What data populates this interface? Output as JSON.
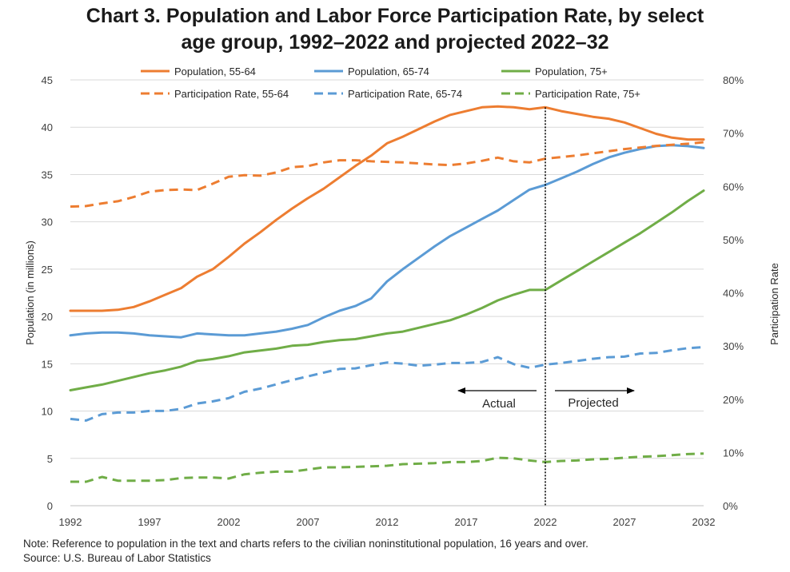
{
  "title_lines": [
    "Chart 3. Population and Labor Force Participation Rate, by select",
    "age group, 1992–2022 and projected 2022–32"
  ],
  "notes": {
    "note": "Note: Reference to population in the text and charts refers to the civilian noninstitutional population, 16 years and over.",
    "source": "Source: U.S. Bureau of Labor Statistics"
  },
  "chart_data": {
    "type": "line",
    "title": "Chart 3. Population and Labor Force Participation Rate, by select age group, 1992–2022 and projected 2022–32",
    "ylabel": "Population (in millions)",
    "y2label": "Participation Rate",
    "ylim": [
      0,
      45
    ],
    "y2lim": [
      0,
      0.8
    ],
    "xlim": [
      1992,
      2032
    ],
    "x_ticks": [
      "1992",
      "1997",
      "2002",
      "2007",
      "2012",
      "2017",
      "2022",
      "2027",
      "2032"
    ],
    "y_ticks": [
      "0",
      "5",
      "10",
      "15",
      "20",
      "25",
      "30",
      "35",
      "40",
      "45"
    ],
    "y2_ticks": [
      "0%",
      "10%",
      "20%",
      "30%",
      "40%",
      "50%",
      "60%",
      "70%",
      "80%"
    ],
    "grid": true,
    "legend_position": "top",
    "divider_year": 2022,
    "annotations": {
      "actual": "Actual",
      "projected": "Projected"
    },
    "x": [
      1992,
      1993,
      1994,
      1995,
      1996,
      1997,
      1998,
      1999,
      2000,
      2001,
      2002,
      2003,
      2004,
      2005,
      2006,
      2007,
      2008,
      2009,
      2010,
      2011,
      2012,
      2013,
      2014,
      2015,
      2016,
      2017,
      2018,
      2019,
      2020,
      2021,
      2022,
      2023,
      2024,
      2025,
      2026,
      2027,
      2028,
      2029,
      2030,
      2031,
      2032
    ],
    "series": [
      {
        "name": "Population, 55-64",
        "axis": "left",
        "style": "solid",
        "color": "#ED7D31",
        "values": [
          20.6,
          20.6,
          20.6,
          20.7,
          21.0,
          21.6,
          22.3,
          23.0,
          24.2,
          25.0,
          26.3,
          27.7,
          28.9,
          30.2,
          31.4,
          32.5,
          33.5,
          34.7,
          35.9,
          37.0,
          38.3,
          39.0,
          39.8,
          40.6,
          41.3,
          41.7,
          42.1,
          42.2,
          42.1,
          41.9,
          42.1,
          41.7,
          41.4,
          41.1,
          40.9,
          40.5,
          39.9,
          39.3,
          38.9,
          38.7,
          38.7
        ]
      },
      {
        "name": "Population, 65-74",
        "axis": "left",
        "style": "solid",
        "color": "#5B9BD5",
        "values": [
          18.0,
          18.2,
          18.3,
          18.3,
          18.2,
          18.0,
          17.9,
          17.8,
          18.2,
          18.1,
          18.0,
          18.0,
          18.2,
          18.4,
          18.7,
          19.1,
          19.9,
          20.6,
          21.1,
          21.9,
          23.7,
          25.0,
          26.2,
          27.4,
          28.5,
          29.4,
          30.3,
          31.2,
          32.3,
          33.4,
          33.9,
          34.6,
          35.3,
          36.1,
          36.8,
          37.3,
          37.7,
          38.0,
          38.1,
          38.0,
          37.8
        ]
      },
      {
        "name": "Population, 75+",
        "axis": "left",
        "style": "solid",
        "color": "#70AD47",
        "values": [
          12.2,
          12.5,
          12.8,
          13.2,
          13.6,
          14.0,
          14.3,
          14.7,
          15.3,
          15.5,
          15.8,
          16.2,
          16.4,
          16.6,
          16.9,
          17.0,
          17.3,
          17.5,
          17.6,
          17.9,
          18.2,
          18.4,
          18.8,
          19.2,
          19.6,
          20.2,
          20.9,
          21.7,
          22.3,
          22.8,
          22.8,
          23.8,
          24.8,
          25.8,
          26.8,
          27.8,
          28.8,
          29.9,
          31.0,
          32.2,
          33.3
        ]
      },
      {
        "name": "Participation Rate, 55-64",
        "axis": "right",
        "style": "dashed",
        "color": "#ED7D31",
        "values": [
          0.562,
          0.563,
          0.568,
          0.572,
          0.58,
          0.59,
          0.593,
          0.594,
          0.593,
          0.605,
          0.618,
          0.621,
          0.62,
          0.626,
          0.636,
          0.638,
          0.645,
          0.649,
          0.649,
          0.647,
          0.646,
          0.645,
          0.643,
          0.641,
          0.64,
          0.643,
          0.648,
          0.654,
          0.647,
          0.645,
          0.652,
          0.655,
          0.658,
          0.662,
          0.666,
          0.67,
          0.673,
          0.676,
          0.678,
          0.68,
          0.683
        ]
      },
      {
        "name": "Participation Rate,  65-74",
        "axis": "right",
        "style": "dashed",
        "color": "#5B9BD5",
        "values": [
          0.163,
          0.16,
          0.172,
          0.175,
          0.175,
          0.178,
          0.178,
          0.182,
          0.192,
          0.196,
          0.202,
          0.214,
          0.22,
          0.228,
          0.236,
          0.243,
          0.25,
          0.257,
          0.258,
          0.264,
          0.269,
          0.267,
          0.263,
          0.265,
          0.268,
          0.268,
          0.27,
          0.279,
          0.266,
          0.259,
          0.265,
          0.268,
          0.272,
          0.276,
          0.279,
          0.28,
          0.286,
          0.287,
          0.292,
          0.296,
          0.298
        ]
      },
      {
        "name": "Participation Rate, 75+",
        "axis": "right",
        "style": "dashed",
        "color": "#70AD47",
        "values": [
          0.045,
          0.045,
          0.054,
          0.047,
          0.047,
          0.047,
          0.048,
          0.052,
          0.053,
          0.053,
          0.051,
          0.059,
          0.062,
          0.064,
          0.064,
          0.068,
          0.072,
          0.072,
          0.073,
          0.074,
          0.075,
          0.078,
          0.079,
          0.08,
          0.082,
          0.082,
          0.084,
          0.09,
          0.089,
          0.085,
          0.082,
          0.084,
          0.085,
          0.087,
          0.088,
          0.09,
          0.092,
          0.093,
          0.095,
          0.097,
          0.098
        ]
      }
    ]
  }
}
